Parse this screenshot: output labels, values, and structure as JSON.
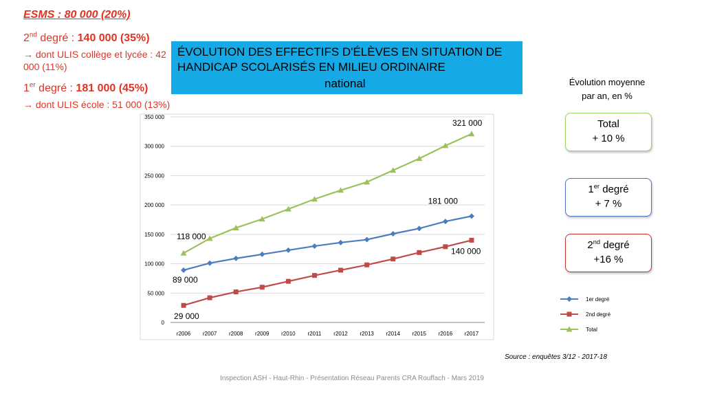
{
  "esms": "ESMS : 80 000 (20%)",
  "second_degree": {
    "label_pre": "2",
    "label_sup": "nd",
    "label_post": " degré : ",
    "value": "140 000 (35%)",
    "sub_arrow": "→",
    "sub": " dont ULIS collège et lycée : 42 000 (11%)"
  },
  "first_degree": {
    "label_pre": "1",
    "label_sup": "er",
    "label_post": " degré : ",
    "value": "181 000 (45%)",
    "sub_arrow": "→",
    "sub": " dont ULIS école : 51 000 (13%)"
  },
  "title": {
    "line1": "ÉVOLUTION DES EFFECTIFS D'ÉLÈVES EN SITUATION DE",
    "line2": "HANDICAP SCOLARISÉS EN MILIEU ORDINAIRE",
    "line3": "national"
  },
  "evolution": {
    "title_line1": "Évolution moyenne",
    "title_line2": "par an, en %",
    "total_label": "Total",
    "total_value": "+ 10 %",
    "deg1_pre": "1",
    "deg1_sup": "er",
    "deg1_post": " degré",
    "deg1_value": "+ 7 %",
    "deg2_pre": "2",
    "deg2_sup": "nd",
    "deg2_post": " degré",
    "deg2_value": "+16 %"
  },
  "source": "Source : enquêtes 3/12 - 2017-18",
  "footer": "Inspection ASH - Haut-Rhin - Présentation Réseau Parents CRA Rouffach - Mars 2019",
  "colors": {
    "red_text": "#e03323",
    "title_bg": "#15a9e6",
    "series_1er": "#4a7dbf",
    "series_2nd": "#bf4b48",
    "series_total": "#9bc15a"
  },
  "chart_data": {
    "type": "line",
    "categories": [
      "r2006",
      "r2007",
      "r2008",
      "r2009",
      "r2010",
      "r2011",
      "r2012",
      "r2013",
      "r2014",
      "r2015",
      "r2016",
      "r2017"
    ],
    "series": [
      {
        "name": "1er degré",
        "marker": "diamond",
        "values": [
          89000,
          101000,
          109000,
          116000,
          123000,
          130000,
          136000,
          141000,
          151000,
          160000,
          172000,
          181000
        ]
      },
      {
        "name": "2nd degré",
        "marker": "square",
        "values": [
          29000,
          42000,
          52000,
          60000,
          70000,
          80000,
          89000,
          98000,
          108000,
          119000,
          129000,
          140000
        ]
      },
      {
        "name": "Total",
        "marker": "triangle",
        "values": [
          118000,
          143000,
          161000,
          176000,
          193000,
          210000,
          225000,
          239000,
          259000,
          279000,
          301000,
          321000
        ]
      }
    ],
    "yticks": [
      "0",
      "50 000",
      "100 000",
      "150 000",
      "200 000",
      "250 000",
      "300 000",
      "350 000"
    ],
    "ylim": [
      0,
      350000
    ],
    "data_labels": [
      {
        "series": 0,
        "index": 0,
        "text": "89 000"
      },
      {
        "series": 0,
        "index": 11,
        "text": "181 000"
      },
      {
        "series": 1,
        "index": 0,
        "text": "29 000"
      },
      {
        "series": 1,
        "index": 11,
        "text": "140 000"
      },
      {
        "series": 2,
        "index": 0,
        "text": "118 000"
      },
      {
        "series": 2,
        "index": 11,
        "text": "321 000"
      }
    ],
    "legend_position": "right",
    "grid": true
  }
}
